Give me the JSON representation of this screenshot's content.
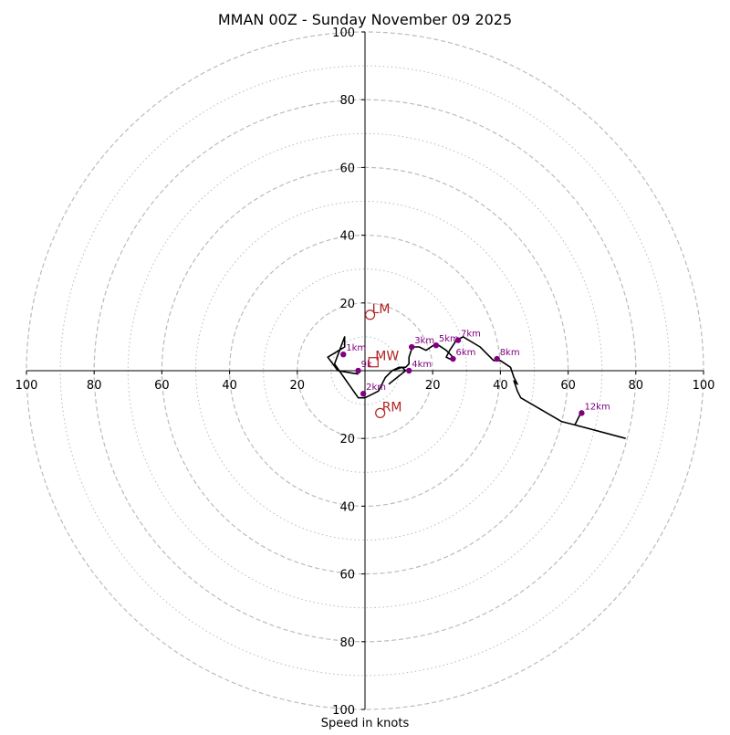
{
  "chart_data": {
    "type": "line",
    "subtype": "hodograph",
    "title": "MMAN 00Z - Sunday November 09 2025",
    "xlabel": "Speed in knots",
    "ylabel": "",
    "xlim": [
      -100,
      100
    ],
    "ylim": [
      -100,
      100
    ],
    "axis_tick_labels": {
      "x": [
        "100",
        "80",
        "60",
        "40",
        "20",
        "20",
        "40",
        "60",
        "80",
        "100"
      ],
      "y": [
        "100",
        "80",
        "60",
        "40",
        "20",
        "20",
        "40",
        "60",
        "80",
        "100"
      ]
    },
    "x_tick_values": [
      -100,
      -80,
      -60,
      -40,
      -20,
      20,
      40,
      60,
      80,
      100
    ],
    "y_tick_values": [
      100,
      80,
      60,
      40,
      20,
      -20,
      -40,
      -60,
      -80,
      -100
    ],
    "grid": {
      "major_rings": [
        20,
        40,
        60,
        80,
        100
      ],
      "minor_rings": [
        10,
        30,
        50,
        70,
        90
      ],
      "major_style": "dashed",
      "minor_style": "dotted"
    },
    "series": [
      {
        "name": "hodograph",
        "points": [
          [
            -2,
            -1
          ],
          [
            -8,
            0
          ],
          [
            -11,
            4
          ],
          [
            -6,
            7
          ],
          [
            -6,
            10
          ],
          [
            -9,
            2
          ],
          [
            -2,
            -8
          ],
          [
            0,
            -8
          ],
          [
            4,
            -6
          ],
          [
            6,
            -2
          ],
          [
            8,
            0
          ],
          [
            10,
            1
          ],
          [
            12,
            1
          ],
          [
            13,
            2
          ],
          [
            13,
            4
          ],
          [
            14,
            7
          ],
          [
            16,
            7
          ],
          [
            18,
            6
          ],
          [
            21,
            8
          ],
          [
            24,
            6
          ],
          [
            26,
            4
          ],
          [
            26,
            3
          ],
          [
            24,
            4
          ],
          [
            25,
            6
          ],
          [
            27,
            9
          ],
          [
            29,
            10
          ],
          [
            34,
            7
          ],
          [
            38,
            3
          ],
          [
            40,
            3
          ],
          [
            43,
            1
          ],
          [
            44,
            -2
          ],
          [
            45,
            -4
          ],
          [
            44,
            -3
          ],
          [
            45,
            -6
          ],
          [
            46,
            -8
          ],
          [
            58,
            -15
          ],
          [
            62,
            -16
          ],
          [
            77,
            -20
          ]
        ]
      },
      {
        "name": "secondary segment",
        "points": [
          [
            7,
            -4
          ],
          [
            12,
            0
          ],
          [
            11,
            1
          ],
          [
            8,
            0
          ]
        ]
      },
      {
        "name": "12km tail",
        "points": [
          [
            64,
            -12
          ],
          [
            62,
            -16
          ]
        ]
      }
    ],
    "height_labels": [
      {
        "label": "1km",
        "x": -6.4,
        "y": 4.8
      },
      {
        "label": "2km",
        "x": -0.5,
        "y": -6.8
      },
      {
        "label": "3km",
        "x": 13.8,
        "y": 7
      },
      {
        "label": "4km",
        "x": 13,
        "y": 0
      },
      {
        "label": "5km",
        "x": 21,
        "y": 7.5
      },
      {
        "label": "6km",
        "x": 26,
        "y": 3.5
      },
      {
        "label": "7km",
        "x": 27.5,
        "y": 9
      },
      {
        "label": "8km",
        "x": 39,
        "y": 3.5
      },
      {
        "label": "12km",
        "x": 64,
        "y": -12.5
      },
      {
        "label": "9k",
        "x": -2,
        "y": 0
      }
    ],
    "storm_motion": [
      {
        "label": "LM",
        "x": 1.5,
        "y": 16.5,
        "marker": "circle"
      },
      {
        "label": "RM",
        "x": 4.5,
        "y": -12.5,
        "marker": "circle"
      },
      {
        "label": "MW",
        "x": 2.5,
        "y": 2.5,
        "marker": "square"
      }
    ],
    "colors": {
      "hodograph_line": "#000000",
      "height_marker": "#800080",
      "storm_motion": "#b22222",
      "grid": "#bbbbbb",
      "axes": "#000000"
    }
  }
}
